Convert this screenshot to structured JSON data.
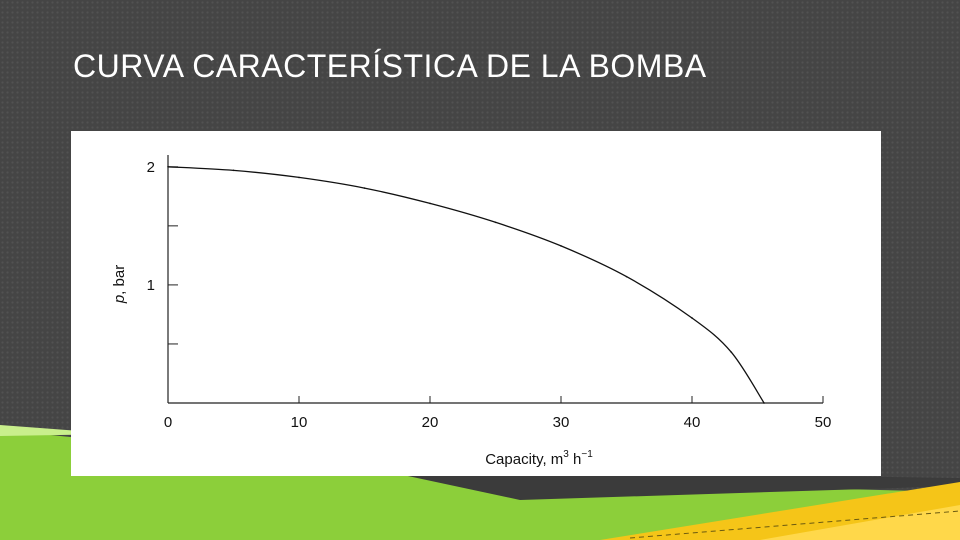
{
  "slide": {
    "title": "CURVA CARACTERÍSTICA DE LA BOMBA",
    "colors": {
      "background": "#454545",
      "green_accent": "#8ccf3a",
      "yellow_accent": "#f5c518"
    }
  },
  "chart_data": {
    "type": "line",
    "title": "",
    "xlabel": "Capacity, m3 h-1",
    "xlabel_parts": {
      "base": "Capacity, m",
      "sup1": "3",
      "mid": " h",
      "sup2": "−1"
    },
    "ylabel": "p, bar",
    "ylabel_parts": {
      "symbol": "p",
      "rest": ", bar"
    },
    "xlim": [
      0,
      50
    ],
    "ylim": [
      0,
      2.1
    ],
    "x_ticks": [
      0,
      10,
      20,
      30,
      40,
      50
    ],
    "x_tick_labels": [
      "0",
      "10",
      "20",
      "30",
      "40",
      "50"
    ],
    "y_major_ticks": [
      1,
      2
    ],
    "y_tick_labels": [
      "1",
      "2"
    ],
    "y_minor_ticks": [
      0.5,
      1.5
    ],
    "grid": false,
    "series": [
      {
        "x": [
          0,
          5,
          10,
          15,
          20,
          25,
          30,
          35,
          40,
          43,
          45.5
        ],
        "y": [
          2.0,
          1.97,
          1.91,
          1.82,
          1.69,
          1.53,
          1.33,
          1.07,
          0.72,
          0.43,
          0.0
        ]
      }
    ]
  }
}
